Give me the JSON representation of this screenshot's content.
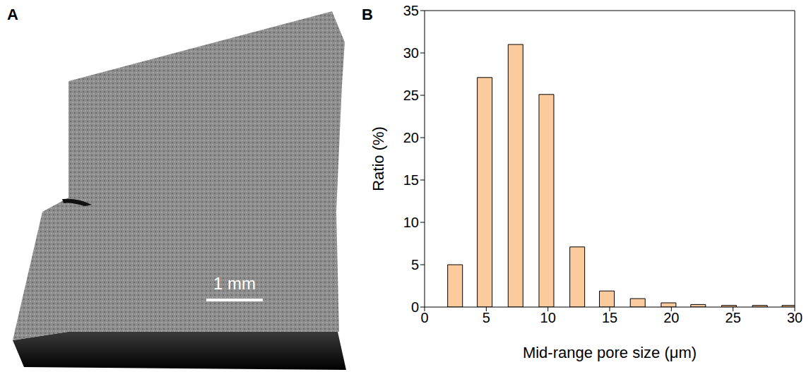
{
  "image_panel": {
    "panel_label": "A",
    "scale_bar": "1 mm"
  },
  "chart_data": {
    "panel_label": "B",
    "type": "bar",
    "x": [
      2.5,
      4.9,
      7.4,
      9.9,
      12.4,
      14.8,
      17.3,
      19.8,
      22.2,
      24.7,
      27.2,
      29.6
    ],
    "values": [
      5,
      27.1,
      31,
      25.1,
      7.1,
      1.9,
      1.0,
      0.5,
      0.3,
      0.2,
      0.2,
      0.2
    ],
    "color": "#fbcb9d",
    "x_label": "Mid-range pore size (μm)",
    "y_label": "Ratio (%)",
    "xlim": [
      0,
      30
    ],
    "xticks": [
      0,
      5,
      10,
      15,
      20,
      25,
      30
    ],
    "ylim": [
      0,
      35
    ],
    "yticks": [
      0,
      5,
      10,
      15,
      20,
      25,
      30,
      35
    ],
    "grid": false
  }
}
